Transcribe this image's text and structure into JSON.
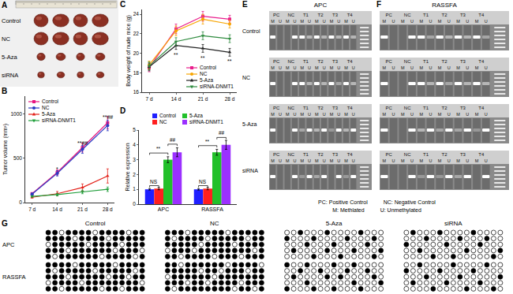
{
  "tumor_photo": {
    "label": "A",
    "rows": [
      "Control",
      "NC",
      "5-Aza",
      "siRNA"
    ]
  },
  "chart_data": [
    {
      "label": "B",
      "type": "line",
      "categories": [
        "7 d",
        "14 d",
        "21 d",
        "28 d"
      ],
      "y_label": "Tumor volume (mm³)",
      "ylim": [
        0,
        1200
      ],
      "yticks": [
        0,
        500,
        1000
      ],
      "grid": false,
      "legend": "top left",
      "series": [
        {
          "name": "Control",
          "color": "#e8167f",
          "marker": "square",
          "values": [
            100,
            340,
            620,
            900
          ],
          "errors": [
            10,
            30,
            50,
            70
          ]
        },
        {
          "name": "NC",
          "color": "#2b3bc4",
          "marker": "circle",
          "values": [
            95,
            330,
            600,
            870
          ],
          "errors": [
            10,
            30,
            45,
            60
          ]
        },
        {
          "name": "5-Aza",
          "color": "#e32119",
          "marker": "triangle-up",
          "values": [
            60,
            100,
            170,
            300
          ],
          "errors": [
            10,
            25,
            40,
            80
          ]
        },
        {
          "name": "siRNA-DNMT1",
          "color": "#1f9e3a",
          "marker": "triangle-down",
          "values": [
            70,
            90,
            120,
            150
          ],
          "errors": [
            8,
            15,
            20,
            25
          ]
        }
      ],
      "annotations": [
        {
          "category": "14 d",
          "y": 430,
          "text": "*"
        },
        {
          "category": "21 d",
          "y": 720,
          "text": "**##"
        },
        {
          "category": "28 d",
          "y": 1010,
          "text": "**##"
        }
      ]
    },
    {
      "label": "C",
      "type": "line",
      "categories": [
        "7 d",
        "14 d",
        "21 d",
        "28 d"
      ],
      "y_label": "Body weight of nude mice (g)",
      "ylim": [
        16,
        24.5
      ],
      "yticks": [
        16,
        18,
        20,
        22,
        24
      ],
      "grid": false,
      "legend": "bottom right",
      "series": [
        {
          "name": "Control",
          "color": "#e91e8c",
          "marker": "square",
          "values": [
            18.5,
            22.5,
            23.8,
            23.5
          ],
          "errors": [
            0.4,
            0.5,
            0.5,
            0.4
          ]
        },
        {
          "name": "NC",
          "color": "#f7a400",
          "marker": "circle",
          "values": [
            18.8,
            22.3,
            23.5,
            23.0
          ],
          "errors": [
            0.4,
            0.5,
            0.5,
            0.4
          ]
        },
        {
          "name": "5-Aza",
          "color": "#222222",
          "marker": "triangle-up",
          "values": [
            18.6,
            20.8,
            20.5,
            20.1
          ],
          "errors": [
            0.4,
            0.4,
            0.4,
            0.4
          ]
        },
        {
          "name": "siRNA-DNMT1",
          "color": "#2e8b3e",
          "marker": "triangle-down",
          "values": [
            18.7,
            21.2,
            21.8,
            21.5
          ],
          "errors": [
            0.4,
            0.4,
            0.4,
            0.4
          ]
        }
      ],
      "annotations": [
        {
          "category": "14 d",
          "y": 20.3,
          "text": "**"
        },
        {
          "category": "21 d",
          "y": 20.0,
          "text": "**"
        },
        {
          "category": "28 d",
          "y": 19.65,
          "text": "**"
        }
      ]
    },
    {
      "label": "D",
      "type": "bar",
      "categories": [
        "APC",
        "RASSFA"
      ],
      "y_label": "Relative expression",
      "ylim": [
        0,
        5
      ],
      "yticks": [
        0,
        1,
        2,
        3,
        4,
        5
      ],
      "grid": false,
      "legend": "top",
      "series": [
        {
          "name": "Control",
          "color": "#1f1fff",
          "values": [
            1.0,
            1.0
          ],
          "errors": [
            0.05,
            0.05
          ]
        },
        {
          "name": "NC",
          "color": "#ff1f1f",
          "values": [
            1.05,
            1.05
          ],
          "errors": [
            0.08,
            0.08
          ]
        },
        {
          "name": "5-Aza",
          "color": "#22c02a",
          "values": [
            3.0,
            3.5
          ],
          "errors": [
            0.2,
            0.2
          ]
        },
        {
          "name": "siRNA-DNMT1",
          "color": "#9b30ff",
          "values": [
            3.5,
            4.0
          ],
          "errors": [
            0.3,
            0.3
          ]
        }
      ],
      "annotations": [
        {
          "category": "APC",
          "between": [
            "Control",
            "NC"
          ],
          "y": 1.25,
          "text": "NS"
        },
        {
          "category": "APC",
          "between": [
            "Control",
            "5-Aza"
          ],
          "y": 3.45,
          "text": "**"
        },
        {
          "category": "APC",
          "between": [
            "5-Aza",
            "siRNA-DNMT1"
          ],
          "y": 4.05,
          "text": "##"
        },
        {
          "category": "RASSFA",
          "between": [
            "Control",
            "NC"
          ],
          "y": 1.25,
          "text": "NS"
        },
        {
          "category": "RASSFA",
          "between": [
            "Control",
            "5-Aza"
          ],
          "y": 3.95,
          "text": "**"
        },
        {
          "category": "RASSFA",
          "between": [
            "5-Aza",
            "siRNA-DNMT1"
          ],
          "y": 4.5,
          "text": "##"
        }
      ]
    }
  ],
  "gels": {
    "row_labels": [
      "Control",
      "NC",
      "5-Aza",
      "siRNA"
    ],
    "lanes": [
      "PC",
      "NC",
      "T1",
      "T2",
      "T3",
      "T4"
    ],
    "sub_lanes": [
      "M",
      "U"
    ],
    "panels": [
      {
        "label": "E",
        "title": "APC",
        "bands": [
          [
            1,
            0,
            0,
            1,
            1,
            0.5,
            1,
            0.5,
            1,
            0.5,
            1,
            0.5
          ],
          [
            1,
            0,
            0,
            1,
            1,
            0.5,
            1,
            0.5,
            1,
            0.4,
            1,
            0.5
          ],
          [
            1,
            0,
            0,
            1,
            0.4,
            1,
            0.5,
            1,
            0.3,
            1,
            0.5,
            1
          ],
          [
            1,
            0,
            0,
            1,
            0.3,
            1,
            0.4,
            1,
            0,
            1,
            0.3,
            1
          ]
        ]
      },
      {
        "label": "F",
        "title": "RASSFA",
        "bands": [
          [
            1,
            0,
            0,
            1,
            1,
            0.4,
            1,
            0.5,
            1,
            0.5,
            1,
            0.4
          ],
          [
            1,
            0,
            0,
            1,
            1,
            0.5,
            1,
            0.4,
            1,
            0.5,
            1,
            0.5
          ],
          [
            1,
            0,
            0,
            1,
            0.5,
            1,
            0.4,
            1,
            0.4,
            1,
            0.3,
            1
          ],
          [
            1,
            0,
            0,
            1,
            0.3,
            1,
            0.3,
            1,
            0.4,
            1,
            0,
            1
          ]
        ]
      }
    ],
    "notes": [
      "PC: Positive Control",
      "NC: Negative Control",
      "M: Methlated",
      "U: Unmethylated"
    ]
  },
  "bisulfite": {
    "label": "G",
    "columns": [
      "Control",
      "NC",
      "5-Aza",
      "siRNA"
    ],
    "rows": [
      "APC",
      "RASSFA"
    ],
    "methylation": [
      [
        [
          [
            1,
            1,
            0,
            1,
            1,
            1,
            1,
            0,
            1,
            1,
            1,
            1,
            0,
            1,
            1
          ],
          [
            1,
            1,
            1,
            1,
            0,
            1,
            1,
            1,
            1,
            0,
            1,
            1,
            1,
            1,
            1
          ],
          [
            0,
            1,
            1,
            1,
            1,
            1,
            0,
            1,
            1,
            1,
            1,
            0,
            1,
            1,
            1
          ],
          [
            1,
            1,
            1,
            0,
            1,
            1,
            1,
            1,
            1,
            1,
            0,
            1,
            1,
            1,
            0
          ],
          [
            1,
            0,
            1,
            1,
            1,
            1,
            1,
            1,
            0,
            1,
            1,
            1,
            1,
            0,
            1
          ]
        ],
        [
          [
            1,
            1,
            1,
            0,
            1,
            1,
            1,
            1,
            1,
            0,
            1,
            1,
            1,
            1,
            1
          ],
          [
            1,
            0,
            1,
            1,
            1,
            1,
            0,
            1,
            1,
            1,
            1,
            1,
            0,
            1,
            1
          ],
          [
            1,
            1,
            1,
            1,
            1,
            0,
            1,
            1,
            1,
            1,
            0,
            1,
            1,
            1,
            1
          ],
          [
            0,
            1,
            1,
            1,
            0,
            1,
            1,
            1,
            1,
            1,
            1,
            1,
            1,
            0,
            1
          ],
          [
            1,
            1,
            0,
            1,
            1,
            1,
            1,
            0,
            1,
            1,
            1,
            0,
            1,
            1,
            1
          ]
        ],
        [
          [
            0,
            0,
            1,
            0,
            0,
            0,
            1,
            0,
            0,
            0,
            0,
            1,
            0,
            0,
            0
          ],
          [
            1,
            0,
            0,
            0,
            1,
            0,
            0,
            0,
            0,
            1,
            0,
            0,
            0,
            1,
            0
          ],
          [
            0,
            0,
            0,
            1,
            0,
            0,
            0,
            1,
            0,
            0,
            0,
            0,
            1,
            0,
            0
          ],
          [
            0,
            1,
            0,
            0,
            0,
            0,
            1,
            0,
            0,
            0,
            1,
            0,
            0,
            0,
            1
          ],
          [
            0,
            0,
            0,
            0,
            1,
            0,
            0,
            0,
            1,
            0,
            0,
            0,
            0,
            1,
            0
          ]
        ],
        [
          [
            0,
            1,
            0,
            0,
            0,
            1,
            0,
            0,
            0,
            0,
            1,
            0,
            0,
            0,
            0
          ],
          [
            0,
            0,
            0,
            1,
            0,
            0,
            0,
            0,
            1,
            0,
            0,
            0,
            1,
            0,
            0
          ],
          [
            1,
            0,
            0,
            0,
            0,
            0,
            1,
            0,
            0,
            0,
            0,
            1,
            0,
            0,
            0
          ],
          [
            0,
            0,
            1,
            0,
            0,
            0,
            0,
            0,
            0,
            1,
            0,
            0,
            0,
            0,
            1
          ],
          [
            0,
            0,
            0,
            0,
            1,
            0,
            0,
            1,
            0,
            0,
            0,
            0,
            0,
            1,
            0
          ]
        ]
      ],
      [
        [
          [
            1,
            1,
            1,
            1,
            0,
            1,
            1,
            1,
            1,
            1,
            0,
            1,
            1,
            1,
            1
          ],
          [
            1,
            0,
            1,
            1,
            1,
            1,
            1,
            0,
            1,
            1,
            1,
            1,
            1,
            0,
            1
          ],
          [
            1,
            1,
            1,
            0,
            1,
            1,
            1,
            1,
            1,
            0,
            1,
            1,
            0,
            1,
            1
          ],
          [
            0,
            1,
            1,
            1,
            1,
            0,
            1,
            1,
            1,
            1,
            1,
            1,
            1,
            1,
            0
          ],
          [
            1,
            1,
            0,
            1,
            1,
            1,
            1,
            1,
            0,
            1,
            1,
            0,
            1,
            1,
            1
          ]
        ],
        [
          [
            1,
            1,
            0,
            1,
            1,
            1,
            1,
            1,
            1,
            0,
            1,
            1,
            1,
            1,
            0
          ],
          [
            1,
            1,
            1,
            1,
            1,
            0,
            1,
            1,
            0,
            1,
            1,
            1,
            0,
            1,
            1
          ],
          [
            0,
            1,
            1,
            1,
            1,
            1,
            1,
            0,
            1,
            1,
            1,
            1,
            1,
            1,
            1
          ],
          [
            1,
            1,
            1,
            0,
            1,
            1,
            0,
            1,
            1,
            1,
            1,
            0,
            1,
            1,
            1
          ],
          [
            1,
            0,
            1,
            1,
            1,
            1,
            1,
            1,
            1,
            1,
            0,
            1,
            1,
            0,
            1
          ]
        ],
        [
          [
            1,
            0,
            0,
            1,
            0,
            0,
            0,
            1,
            0,
            0,
            1,
            0,
            0,
            0,
            0
          ],
          [
            0,
            0,
            1,
            0,
            0,
            1,
            0,
            0,
            0,
            1,
            0,
            0,
            1,
            0,
            0
          ],
          [
            0,
            1,
            0,
            0,
            0,
            0,
            1,
            0,
            1,
            0,
            0,
            0,
            0,
            1,
            0
          ],
          [
            0,
            0,
            0,
            1,
            0,
            0,
            0,
            0,
            0,
            0,
            1,
            0,
            0,
            0,
            1
          ],
          [
            1,
            0,
            0,
            0,
            1,
            0,
            0,
            1,
            0,
            0,
            0,
            1,
            0,
            0,
            0
          ]
        ],
        [
          [
            0,
            0,
            1,
            0,
            0,
            0,
            0,
            1,
            0,
            0,
            0,
            0,
            1,
            0,
            0
          ],
          [
            1,
            0,
            0,
            0,
            0,
            1,
            0,
            0,
            0,
            0,
            1,
            0,
            0,
            0,
            0
          ],
          [
            0,
            0,
            0,
            1,
            0,
            0,
            0,
            0,
            1,
            0,
            0,
            0,
            0,
            0,
            1
          ],
          [
            0,
            1,
            0,
            0,
            0,
            0,
            1,
            0,
            0,
            0,
            0,
            1,
            0,
            0,
            0
          ],
          [
            0,
            0,
            0,
            0,
            1,
            0,
            0,
            0,
            0,
            1,
            0,
            0,
            0,
            1,
            0
          ]
        ]
      ]
    ]
  }
}
